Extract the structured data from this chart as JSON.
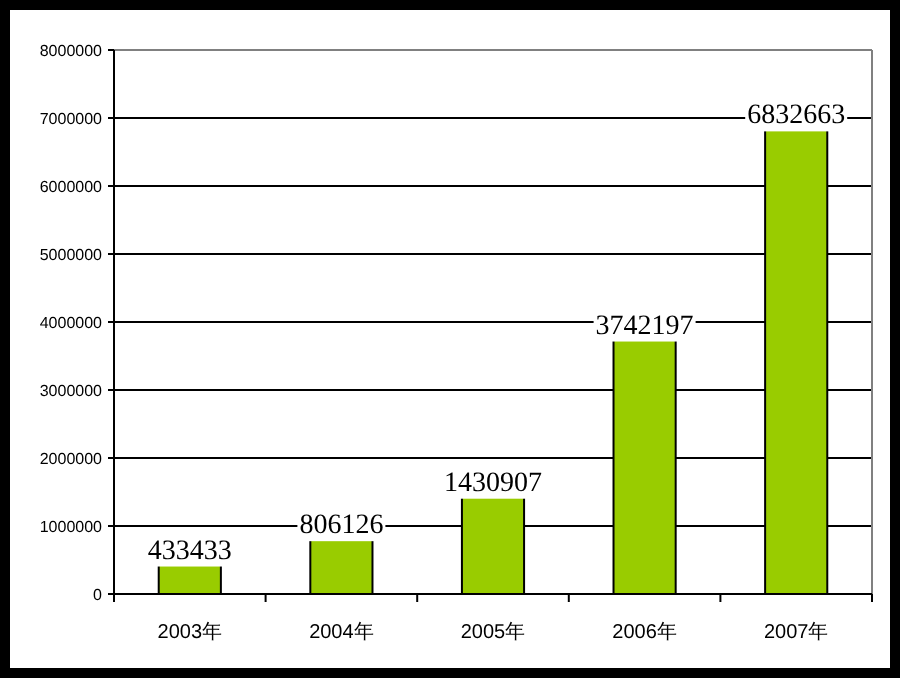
{
  "chart_data": {
    "type": "bar",
    "categories": [
      "2003年",
      "2004年",
      "2005年",
      "2006年",
      "2007年"
    ],
    "values": [
      433433,
      806126,
      1430907,
      3742197,
      6832663
    ],
    "color": "#99cc00",
    "ylim": [
      0,
      8000000
    ],
    "yticks": [
      0,
      1000000,
      2000000,
      3000000,
      4000000,
      5000000,
      6000000,
      7000000,
      8000000
    ],
    "grid": "y",
    "data_labels": true
  }
}
